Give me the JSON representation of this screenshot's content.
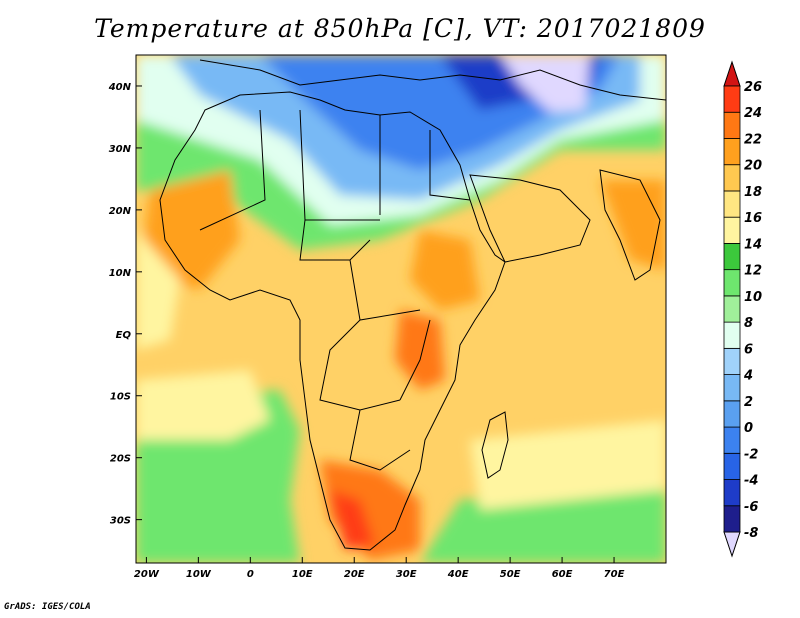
{
  "title": "Temperature at 850hPa [C], VT: 2017021809",
  "credit": "GrADS: IGES/COLA",
  "map": {
    "lon_range": [
      -22,
      80
    ],
    "lat_range": [
      -37,
      45
    ],
    "lon_ticks": [
      {
        "lon": -20,
        "label": "20W"
      },
      {
        "lon": -10,
        "label": "10W"
      },
      {
        "lon": 0,
        "label": "0"
      },
      {
        "lon": 10,
        "label": "10E"
      },
      {
        "lon": 20,
        "label": "20E"
      },
      {
        "lon": 30,
        "label": "30E"
      },
      {
        "lon": 40,
        "label": "40E"
      },
      {
        "lon": 50,
        "label": "50E"
      },
      {
        "lon": 60,
        "label": "60E"
      },
      {
        "lon": 70,
        "label": "70E"
      }
    ],
    "lat_ticks": [
      {
        "lat": 40,
        "label": "40N"
      },
      {
        "lat": 30,
        "label": "30N"
      },
      {
        "lat": 20,
        "label": "20N"
      },
      {
        "lat": 10,
        "label": "10N"
      },
      {
        "lat": 0,
        "label": "EQ"
      },
      {
        "lat": -10,
        "label": "10S"
      },
      {
        "lat": -20,
        "label": "20S"
      },
      {
        "lat": -30,
        "label": "30S"
      }
    ]
  },
  "colorbar": {
    "levels": [
      "-8",
      "-6",
      "-4",
      "-2",
      "0",
      "2",
      "4",
      "6",
      "8",
      "10",
      "12",
      "14",
      "16",
      "18",
      "20",
      "22",
      "24",
      "26"
    ],
    "colors": [
      "#e0d8ff",
      "#1e1e8c",
      "#1e3cc8",
      "#2864e6",
      "#3c82f0",
      "#5aa0f0",
      "#78b9f5",
      "#a0d2fa",
      "#e1fff0",
      "#a0f09a",
      "#6ee66e",
      "#3cc83c",
      "#fff5a0",
      "#ffe682",
      "#ffc850",
      "#ffa01e",
      "#ff7814",
      "#ff3c14",
      "#d21414"
    ]
  }
}
